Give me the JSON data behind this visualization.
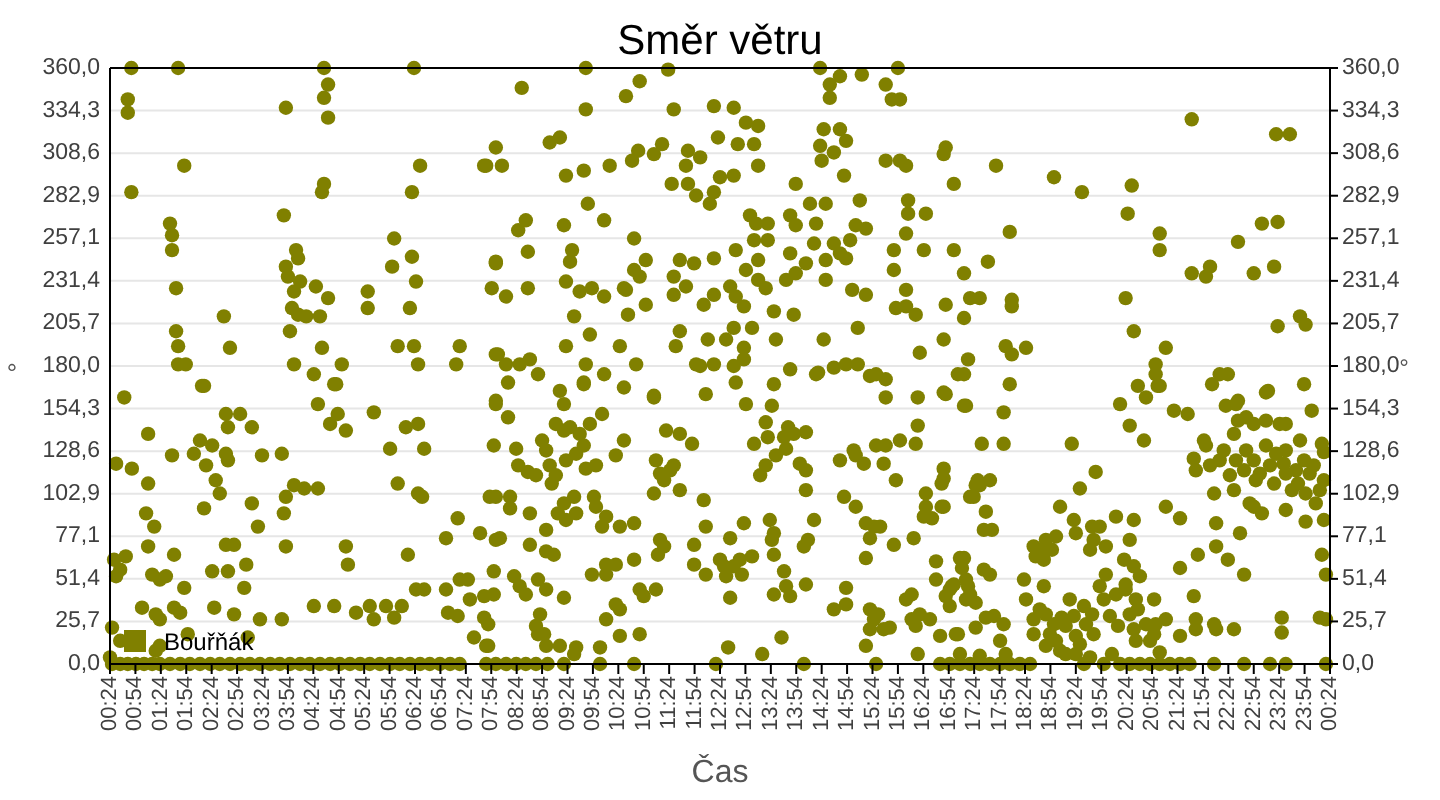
{
  "chart_data": {
    "type": "scatter",
    "title": "Směr větru",
    "xlabel": "Čas",
    "ylabel": "°",
    "y2label": "°",
    "xlim": [
      0.4,
      24.4
    ],
    "xticks": [
      {
        "value": 0.4,
        "label": "00:24"
      },
      {
        "value": 0.9,
        "label": "00:54"
      },
      {
        "value": 1.4,
        "label": "01:24"
      },
      {
        "value": 1.9,
        "label": "01:54"
      },
      {
        "value": 2.4,
        "label": "02:24"
      },
      {
        "value": 2.9,
        "label": "02:54"
      },
      {
        "value": 3.4,
        "label": "03:24"
      },
      {
        "value": 3.9,
        "label": "03:54"
      },
      {
        "value": 4.4,
        "label": "04:24"
      },
      {
        "value": 4.9,
        "label": "04:54"
      },
      {
        "value": 5.4,
        "label": "05:24"
      },
      {
        "value": 5.9,
        "label": "05:54"
      },
      {
        "value": 6.4,
        "label": "06:24"
      },
      {
        "value": 6.9,
        "label": "06:54"
      },
      {
        "value": 7.4,
        "label": "07:24"
      },
      {
        "value": 7.9,
        "label": "07:54"
      },
      {
        "value": 8.4,
        "label": "08:24"
      },
      {
        "value": 8.9,
        "label": "08:54"
      },
      {
        "value": 9.4,
        "label": "09:24"
      },
      {
        "value": 9.9,
        "label": "09:54"
      },
      {
        "value": 10.4,
        "label": "10:24"
      },
      {
        "value": 10.9,
        "label": "10:54"
      },
      {
        "value": 11.4,
        "label": "11:24"
      },
      {
        "value": 11.9,
        "label": "11:54"
      },
      {
        "value": 12.4,
        "label": "12:24"
      },
      {
        "value": 12.9,
        "label": "12:54"
      },
      {
        "value": 13.4,
        "label": "13:24"
      },
      {
        "value": 13.9,
        "label": "13:54"
      },
      {
        "value": 14.4,
        "label": "14:24"
      },
      {
        "value": 14.9,
        "label": "14:54"
      },
      {
        "value": 15.4,
        "label": "15:24"
      },
      {
        "value": 15.9,
        "label": "15:54"
      },
      {
        "value": 16.4,
        "label": "16:24"
      },
      {
        "value": 16.9,
        "label": "16:54"
      },
      {
        "value": 17.4,
        "label": "17:24"
      },
      {
        "value": 17.9,
        "label": "17:54"
      },
      {
        "value": 18.4,
        "label": "18:24"
      },
      {
        "value": 18.9,
        "label": "18:54"
      },
      {
        "value": 19.4,
        "label": "19:24"
      },
      {
        "value": 19.9,
        "label": "19:54"
      },
      {
        "value": 20.4,
        "label": "20:24"
      },
      {
        "value": 20.9,
        "label": "20:54"
      },
      {
        "value": 21.4,
        "label": "21:24"
      },
      {
        "value": 21.9,
        "label": "21:54"
      },
      {
        "value": 22.4,
        "label": "22:24"
      },
      {
        "value": 22.9,
        "label": "22:54"
      },
      {
        "value": 23.4,
        "label": "23:24"
      },
      {
        "value": 23.9,
        "label": "23:54"
      },
      {
        "value": 24.4,
        "label": "00:24"
      }
    ],
    "ylim": [
      0,
      360
    ],
    "yticks": [
      {
        "value": 0,
        "label": "0,0"
      },
      {
        "value": 25.714,
        "label": "25,7"
      },
      {
        "value": 51.429,
        "label": "51,4"
      },
      {
        "value": 77.143,
        "label": "77,1"
      },
      {
        "value": 102.857,
        "label": "102,9"
      },
      {
        "value": 128.571,
        "label": "128,6"
      },
      {
        "value": 154.286,
        "label": "154,3"
      },
      {
        "value": 180,
        "label": "180,0"
      },
      {
        "value": 205.714,
        "label": "205,7"
      },
      {
        "value": 231.429,
        "label": "231,4"
      },
      {
        "value": 257.143,
        "label": "257,1"
      },
      {
        "value": 282.857,
        "label": "282,9"
      },
      {
        "value": 308.571,
        "label": "308,6"
      },
      {
        "value": 334.286,
        "label": "334,3"
      },
      {
        "value": 360,
        "label": "360,0"
      }
    ],
    "y2lim": [
      0,
      360
    ],
    "y2ticks": [
      {
        "value": 0,
        "label": "0,0"
      },
      {
        "value": 25.714,
        "label": "25,7"
      },
      {
        "value": 51.429,
        "label": "51,4"
      },
      {
        "value": 77.143,
        "label": "77,1"
      },
      {
        "value": 102.857,
        "label": "102,9"
      },
      {
        "value": 128.571,
        "label": "128,6"
      },
      {
        "value": 154.286,
        "label": "154,3"
      },
      {
        "value": 180,
        "label": "180,0"
      },
      {
        "value": 205.714,
        "label": "205,7"
      },
      {
        "value": 231.429,
        "label": "231,4"
      },
      {
        "value": 257.143,
        "label": "257,1"
      },
      {
        "value": 282.857,
        "label": "282,9"
      },
      {
        "value": 308.571,
        "label": "308,6"
      },
      {
        "value": 334.286,
        "label": "334,3"
      },
      {
        "value": 360,
        "label": "360,0"
      }
    ],
    "grid": "y",
    "legend": "bottom left",
    "marker": "circle",
    "series": [
      {
        "name": "Bouřňák",
        "color": "#808000",
        "x": [
          0.82,
          0.75,
          0.75,
          0.82,
          1.74,
          1.86,
          1.58,
          1.62,
          1.62,
          1.7,
          1.7,
          1.74,
          1.74,
          1.89,
          2.21,
          0.68,
          2.64,
          2.76,
          3.86,
          3.82,
          4.06,
          4.1,
          3.86,
          3.9,
          4.14,
          4.02,
          4.45,
          4.69,
          3.98,
          4.1,
          4.26,
          4.53,
          3.94,
          4.57,
          4.02,
          4.41,
          4.96,
          4.81,
          4.61,
          4.69,
          4.61,
          4.69,
          4.61,
          4.57,
          5.47,
          5.47,
          5.99,
          5.95,
          6.34,
          6.42,
          6.3,
          6.06,
          6.38,
          6.46,
          6.34,
          6.5,
          6.38,
          7.21,
          7.28,
          7.76,
          7.99,
          7.91,
          7.99,
          7.99,
          0.52,
          0.83,
          0.48,
          0.6,
          0.71,
          0.52,
          1.03,
          1.15,
          1.15,
          1.11,
          1.15,
          1.27,
          1.23,
          1.38,
          1.3,
          1.38,
          1.5,
          1.66,
          1.86,
          1.66,
          1.78,
          1.62,
          1.93,
          2.25,
          2.05,
          2.17,
          2.29,
          2.41,
          2.48,
          2.68,
          2.72,
          2.56,
          2.25,
          2.41,
          2.72,
          2.68,
          2.84,
          2.45,
          2.84,
          2.68,
          2.72,
          2.96,
          3.19,
          3.04,
          3.08,
          3.19,
          3.31,
          3.39,
          3.35,
          3.11,
          3.78,
          3.78,
          3.82,
          3.86,
          4.02,
          4.22,
          4.49,
          3.86,
          4.49,
          4.85,
          4.73,
          4.88,
          5.04,
          5.59,
          5.04,
          5.08,
          4.41,
          4.81,
          5.24,
          5.51,
          5.59,
          5.83,
          5.99,
          6.14,
          5.91,
          6.06,
          6.22,
          6.46,
          6.58,
          6.46,
          6.54,
          6.26,
          6.42,
          6.58,
          7.01,
          7.24,
          7.28,
          7.01,
          7.05,
          7.24,
          7.44,
          7.48,
          7.56,
          7.68,
          7.76,
          7.84,
          7.95,
          7.95,
          7.99,
          7.99,
          7.99,
          0.44,
          0.6,
          0.4,
          1.3,
          1.38,
          9.76,
          11.38,
          8.5,
          9.76,
          10.55,
          10.82,
          11.49,
          12.28,
          12.67,
          12.91,
          13.15,
          14.37,
          14.56,
          14.56,
          14.76,
          15.19,
          15.66,
          15.9,
          15.78,
          15.94,
          8.11,
          7.8,
          9.05,
          9.25,
          9.37,
          9.72,
          10.23,
          10.67,
          10.79,
          11.1,
          11.26,
          11.77,
          12.01,
          11.73,
          12.36,
          12.75,
          13.07,
          12.4,
          12.67,
          13.15,
          11.45,
          11.77,
          11.93,
          12.28,
          12.2,
          9.8,
          10.12,
          10.71,
          8.58,
          8.43,
          9.33,
          9.49,
          9.45,
          7.99,
          8.62,
          8.19,
          8.62,
          9.37,
          9.64,
          9.88,
          10.12,
          10.51,
          10.82,
          10.94,
          10.71,
          11.61,
          11.49,
          11.73,
          11.89,
          11.49,
          12.08,
          12.28,
          12.28,
          12.71,
          12.99,
          13.11,
          13.34,
          13.07,
          13.34,
          13.15,
          12.91,
          13.15,
          13.3,
          12.6,
          12.71,
          12.87,
          13.78,
          13.89,
          13.89,
          14.17,
          14.48,
          14.29,
          13.78,
          13.89,
          13.7,
          14.09,
          14.25,
          14.48,
          14.48,
          14.64,
          14.76,
          14.96,
          15.07,
          15.27,
          15.15,
          14.88,
          15.0,
          15.27,
          14.44,
          14.37,
          14.4,
          14.64,
          14.76,
          14.88,
          14.84,
          15.66,
          15.94,
          16.06,
          16.84,
          16.8,
          17.0,
          16.1,
          16.1,
          16.45,
          16.06,
          16.41,
          15.82,
          15.82,
          16.06,
          16.06,
          15.86,
          16.25,
          16.84,
          17.0,
          17.2,
          17.32,
          17.2,
          16.33,
          16.8,
          17.08,
          16.8,
          13.46,
          13.85,
          12.67,
          13.03,
          12.16,
          12.52,
          12.87,
          12.87,
          13.5,
          13.78,
          14.33,
          14.64,
          14.44,
          15.11,
          14.88,
          15.11,
          15.35,
          15.47,
          15.66,
          9.53,
          9.84,
          9.37,
          10.43,
          10.75,
          9.76,
          10.12,
          9.72,
          9.25,
          8.03,
          8.19,
          8.46,
          8.66,
          8.82,
          8.23,
          11.61,
          11.53,
          11.93,
          12.28,
          12.67,
          12.71,
          13.46,
          11.1,
          10.59,
          10.55,
          10.94,
          12.12,
          17.51,
          7.99,
          8.23,
          8.39,
          9.33,
          9.72,
          10.51,
          11.1,
          12.01,
          12.91,
          14.29,
          15.66,
          16.29,
          16.84,
          17.2,
          17.2,
          8.9,
          8.98,
          9.17,
          9.33,
          9.45,
          9.64,
          9.72,
          9.84,
          10.08,
          9.05,
          9.17,
          9.37,
          9.57,
          9.76,
          9.96,
          10.35,
          10.51,
          8.43,
          8.62,
          8.78,
          9.09,
          9.33,
          9.53,
          9.21,
          9.37,
          9.57,
          9.92,
          9.96,
          10.16,
          10.43,
          10.71,
          10.08,
          8.98,
          7.87,
          8.27,
          8.27,
          8.66,
          9.13,
          8.98,
          8.66,
          8.07,
          7.95,
          8.35,
          8.46,
          8.58,
          8.82,
          8.98,
          9.33,
          8.86,
          8.78,
          8.94,
          9.25,
          9.57,
          9.88,
          10.16,
          10.16,
          10.35,
          10.71,
          10.04,
          10.16,
          10.35,
          10.43,
          10.43,
          10.82,
          10.82,
          10.9,
          11.14,
          11.22,
          11.3,
          11.18,
          11.1,
          11.22,
          11.3,
          11.14,
          11.42,
          11.49,
          11.61,
          11.34,
          11.61,
          11.85,
          12.08,
          12.12,
          11.89,
          11.89,
          12.12,
          12.4,
          12.48,
          12.52,
          12.6,
          12.67,
          12.83,
          12.6,
          12.79,
          13.03,
          12.87,
          13.07,
          13.34,
          13.3,
          13.42,
          13.66,
          13.74,
          13.19,
          13.3,
          13.5,
          13.7,
          13.85,
          14.09,
          13.97,
          14.09,
          14.09,
          14.05,
          14.13,
          14.25,
          13.38,
          13.46,
          13.42,
          13.46,
          13.66,
          13.7,
          13.46,
          13.78,
          14.09,
          13.61,
          13.23,
          12.56,
          14.64,
          14.88,
          14.88,
          14.84,
          15.07,
          14.76,
          15.03,
          15.07,
          15.23,
          15.47,
          15.62,
          15.66,
          15.86,
          15.94,
          16.29,
          16.25,
          15.27,
          15.43,
          15.55,
          15.35,
          15.82,
          15.27,
          16.21,
          16.45,
          16.45,
          16.57,
          16.76,
          16.76,
          16.41,
          16.06,
          16.17,
          16.33,
          16.53,
          16.65,
          16.65,
          16.84,
          16.92,
          17.0,
          17.12,
          17.16,
          17.24,
          17.24,
          17.39,
          17.43,
          17.43,
          15.35,
          15.43,
          15.51,
          15.62,
          15.74,
          15.35,
          15.27,
          16.25,
          16.17,
          16.73,
          17.04,
          17.12,
          16.29,
          7.8,
          7.84,
          7.76,
          8.82,
          8.98,
          9.53,
          17.28,
          17.24,
          18.1,
          17.98,
          17.98,
          17.55,
          16.8,
          16.8,
          16.8,
          17.47,
          17.51,
          17.71,
          17.32,
          17.63,
          17.59,
          17.75,
          17.2,
          17.28,
          17.32,
          17.59,
          17.71,
          16.96,
          16.92,
          17.08,
          17.43,
          17.63,
          17.79,
          17.98,
          17.91,
          18.02,
          17.51,
          19.32,
          19.48,
          19.79,
          20.27,
          20.46,
          20.74,
          20.62,
          20.78,
          20.97,
          21.01,
          21.33,
          21.6,
          21.17,
          21.45,
          21.17,
          21.05,
          20.94,
          21.72,
          21.76,
          21.76,
          21.45,
          21.45,
          21.8,
          21.96,
          22.08,
          22.23,
          22.39,
          22.35,
          22.55,
          22.59,
          22.75,
          22.51,
          22.9,
          23.14,
          23.14,
          23.41,
          23.53,
          23.89,
          24.04,
          24.24,
          24.28,
          23.53,
          23.81,
          24.2,
          24.28,
          24.24,
          24.32,
          24.2,
          24.32,
          23.45,
          23.45,
          22.71,
          22.63,
          22.16,
          22.16,
          22.39,
          22.51,
          22.12,
          22.16,
          21.72,
          21.76,
          21.92,
          22.04,
          22.12,
          22.23,
          22.31,
          22.43,
          22.51,
          22.55,
          22.75,
          22.71,
          22.9,
          22.94,
          23.02,
          23.14,
          23.22,
          23.3,
          23.34,
          23.49,
          23.53,
          23.53,
          23.65,
          23.73,
          23.77,
          23.89,
          23.92,
          24.0,
          24.08,
          24.12,
          24.28,
          23.92,
          22.9,
          22.82,
          23.06,
          18.38,
          18.42,
          18.57,
          18.61,
          18.69,
          18.57,
          18.77,
          18.77,
          18.69,
          18.81,
          18.97,
          18.89,
          19.01,
          19.09,
          19.12,
          19.2,
          19.28,
          19.36,
          19.4,
          19.56,
          19.6,
          19.72,
          19.75,
          19.87,
          19.99,
          19.95,
          20.07,
          20.19,
          20.23,
          20.35,
          20.38,
          20.46,
          20.54,
          20.58,
          20.58,
          20.66,
          20.78,
          20.86,
          19.36,
          19.4,
          19.72,
          19.75,
          19.87,
          19.99,
          19.09,
          19.01,
          18.93,
          18.81,
          19.68,
          20.19,
          20.54,
          20.46,
          20.54,
          20.38,
          20.94,
          20.97,
          20.62,
          18.81,
          19.2,
          19.4,
          19.48,
          18.57,
          19.68,
          20.11,
          17.67,
          18.1,
          17.83,
          18.02,
          18.14,
          18.42,
          18.14,
          18.14,
          18.97,
          19.52,
          20.42,
          20.5,
          20.38,
          20.54,
          21.05,
          21.05,
          21.17,
          20.97,
          21.05,
          21.68,
          21.68,
          22.04,
          21.96,
          22.59,
          22.9,
          23.06,
          23.37,
          23.3,
          23.34,
          23.61,
          23.37,
          23.81,
          23.92,
          23.18,
          22.59,
          0.44,
          0.6,
          0.75,
          0.91,
          1.07,
          1.23,
          1.38,
          1.58,
          1.78,
          1.97,
          2.17,
          2.37,
          2.56,
          2.76,
          2.96,
          3.15,
          3.35,
          3.55,
          3.74,
          3.94,
          4.14,
          4.33,
          4.53,
          4.73,
          4.92,
          5.12,
          5.32,
          5.51,
          5.71,
          5.91,
          6.1,
          6.3,
          6.5,
          6.69,
          6.89,
          7.09,
          7.28,
          7.8,
          7.99,
          8.19,
          8.39,
          8.58,
          8.78,
          9.01,
          9.33,
          10.04,
          10.71,
          12.32,
          14.05,
          15.47,
          16.73,
          16.92,
          17.12,
          17.32,
          17.51,
          17.71,
          17.91,
          18.1,
          18.3,
          18.5,
          19.56,
          19.95,
          20.27,
          20.46,
          20.66,
          20.86,
          21.05,
          21.25,
          21.45,
          21.64,
          22.12,
          22.71,
          23.22,
          23.53,
          24.32
        ],
        "values": [
          360,
          341,
          333,
          285,
          360,
          301,
          266,
          259,
          250,
          227,
          201,
          192,
          181,
          181,
          168,
          161,
          210,
          191,
          336,
          271,
          250,
          245,
          240,
          234,
          231,
          225,
          228,
          221,
          215,
          211,
          210,
          210,
          201,
          191,
          181,
          175,
          181,
          169,
          360,
          350,
          342,
          330,
          290,
          285,
          225,
          215,
          257,
          240,
          246,
          231,
          215,
          192,
          192,
          181,
          285,
          301,
          360,
          181,
          192,
          301,
          312,
          227,
          242,
          187,
          121,
          118,
          63,
          57,
          65,
          53,
          34,
          139,
          109,
          91,
          71,
          83,
          54,
          51,
          30,
          27,
          53,
          66,
          46,
          34,
          31,
          126,
          18,
          168,
          127,
          135,
          120,
          132,
          111,
          127,
          123,
          103,
          94,
          56,
          56,
          72,
          72,
          34,
          30,
          151,
          143,
          151,
          143,
          46,
          60,
          97,
          83,
          126,
          27,
          16,
          27,
          127,
          91,
          101,
          108,
          106,
          106,
          71,
          157,
          169,
          145,
          151,
          141,
          152,
          71,
          60,
          35,
          35,
          31,
          35,
          27,
          35,
          28,
          35,
          130,
          109,
          143,
          145,
          130,
          103,
          101,
          66,
          45,
          45,
          76,
          88,
          51,
          45,
          31,
          29,
          51,
          39,
          16,
          79,
          28,
          11,
          42,
          132,
          159,
          75,
          101,
          22,
          14,
          4,
          8,
          11,
          360,
          359,
          348,
          335,
          343,
          352,
          335,
          337,
          336,
          327,
          325,
          360,
          350,
          342,
          355,
          356,
          350,
          360,
          341,
          341,
          301,
          301,
          315,
          318,
          295,
          298,
          301,
          304,
          310,
          308,
          314,
          310,
          306,
          301,
          318,
          314,
          314,
          294,
          295,
          301,
          290,
          290,
          283,
          285,
          278,
          278,
          268,
          257,
          268,
          262,
          265,
          250,
          243,
          243,
          249,
          222,
          227,
          231,
          225,
          227,
          222,
          227,
          234,
          244,
          238,
          244,
          234,
          228,
          242,
          223,
          217,
          223,
          245,
          250,
          271,
          266,
          266,
          256,
          256,
          244,
          238,
          232,
          227,
          228,
          222,
          216,
          271,
          265,
          290,
          278,
          278,
          266,
          248,
          236,
          232,
          242,
          254,
          244,
          232,
          254,
          248,
          256,
          265,
          263,
          280,
          245,
          226,
          223,
          323,
          313,
          304,
          309,
          323,
          316,
          295,
          304,
          304,
          301,
          312,
          308,
          290,
          280,
          272,
          272,
          260,
          250,
          250,
          238,
          226,
          216,
          215,
          211,
          217,
          250,
          236,
          221,
          209,
          188,
          196,
          175,
          164,
          213,
          211,
          203,
          203,
          196,
          196,
          191,
          184,
          196,
          178,
          176,
          179,
          196,
          203,
          181,
          181,
          174,
          175,
          172,
          210,
          199,
          192,
          192,
          181,
          181,
          175,
          170,
          165,
          187,
          181,
          181,
          184,
          175,
          170,
          201,
          192,
          181,
          181,
          180,
          170,
          169,
          162,
          211,
          226,
          217,
          163,
          221,
          157,
          149,
          130,
          157,
          169,
          167,
          161,
          180,
          157,
          175,
          161,
          161,
          163,
          175,
          156,
          135,
          129,
          145,
          141,
          143,
          139,
          132,
          145,
          151,
          120,
          114,
          123,
          127,
          118,
          120,
          126,
          135,
          120,
          116,
          114,
          109,
          97,
          101,
          91,
          87,
          91,
          101,
          95,
          89,
          83,
          85,
          83,
          81,
          101,
          94,
          101,
          91,
          66,
          68,
          72,
          76,
          56,
          53,
          47,
          42,
          51,
          45,
          40,
          30,
          23,
          18,
          11,
          10,
          54,
          54,
          60,
          60,
          63,
          10,
          27,
          36,
          33,
          17,
          45,
          18,
          41,
          45,
          75,
          71,
          66,
          103,
          115,
          111,
          123,
          117,
          120,
          105,
          141,
          139,
          133,
          99,
          83,
          72,
          60,
          54,
          63,
          59,
          53,
          76,
          59,
          54,
          40,
          63,
          65,
          85,
          133,
          137,
          146,
          156,
          137,
          143,
          114,
          120,
          126,
          130,
          139,
          140,
          121,
          117,
          105,
          71,
          75,
          87,
          87,
          79,
          75,
          66,
          56,
          47,
          42,
          41,
          48,
          16,
          6,
          10,
          33,
          36,
          46,
          101,
          95,
          123,
          129,
          126,
          121,
          132,
          121,
          132,
          111,
          135,
          144,
          133,
          85,
          83,
          83,
          76,
          72,
          64,
          76,
          103,
          95,
          88,
          95,
          109,
          89,
          39,
          42,
          30,
          27,
          62,
          51,
          41,
          45,
          48,
          64,
          58,
          51,
          39,
          101,
          108,
          37,
          33,
          27,
          30,
          21,
          22,
          21,
          11,
          23,
          27,
          17,
          18,
          6,
          6,
          11,
          24,
          41,
          18,
          11,
          6,
          184,
          156,
          169,
          152,
          133,
          133,
          118,
          112,
          95,
          111,
          108,
          111,
          101,
          92,
          81,
          81,
          64,
          47,
          42,
          57,
          54,
          47,
          35,
          18,
          22,
          28,
          29,
          24,
          14,
          6,
          5,
          133,
          106,
          116,
          157,
          144,
          135,
          168,
          161,
          181,
          168,
          153,
          151,
          95,
          88,
          27,
          7,
          39,
          41,
          27,
          21,
          17,
          58,
          66,
          132,
          169,
          175,
          175,
          156,
          157,
          147,
          149,
          139,
          145,
          147,
          164,
          145,
          145,
          169,
          153,
          133,
          128,
          129,
          135,
          105,
          87,
          66,
          54,
          28,
          27,
          28,
          19,
          54,
          79,
          85,
          71,
          63,
          21,
          24,
          21,
          124,
          117,
          135,
          120,
          103,
          123,
          129,
          114,
          105,
          123,
          129,
          117,
          123,
          111,
          115,
          132,
          120,
          109,
          127,
          121,
          115,
          93,
          105,
          117,
          109,
          123,
          103,
          115,
          120,
          97,
          111,
          86,
          95,
          97,
          91,
          51,
          39,
          27,
          65,
          69,
          71,
          63,
          47,
          33,
          30,
          24,
          18,
          14,
          8,
          28,
          23,
          39,
          29,
          17,
          35,
          24,
          30,
          18,
          47,
          54,
          39,
          29,
          42,
          23,
          63,
          48,
          30,
          21,
          39,
          14,
          53,
          24,
          14,
          87,
          79,
          83,
          75,
          83,
          71,
          95,
          77,
          69,
          75,
          69,
          89,
          87,
          75,
          59,
          45,
          18,
          24,
          33,
          11,
          6,
          6,
          12,
          18,
          4,
          6,
          243,
          261,
          301,
          192,
          187,
          191,
          220,
          216,
          294,
          285,
          272,
          289,
          221,
          201,
          260,
          250,
          191,
          175,
          168,
          329,
          236,
          240,
          234,
          255,
          236,
          266,
          267,
          240,
          320,
          320,
          204,
          210,
          205,
          165,
          159,
          0,
          0,
          0,
          0,
          0,
          0,
          0,
          0,
          0,
          0,
          0,
          0,
          0,
          0,
          0,
          0,
          0,
          0,
          0,
          0,
          0,
          0,
          0,
          0,
          0,
          0,
          0,
          0,
          0,
          0,
          0,
          0,
          0,
          0,
          0,
          0,
          0,
          0,
          0,
          0,
          0,
          0,
          0,
          0,
          0,
          0,
          0,
          0,
          0,
          0,
          0,
          0,
          0,
          0,
          0,
          0,
          0,
          0,
          0,
          0,
          0,
          0,
          0,
          0,
          0,
          0,
          0,
          0,
          0,
          0,
          0,
          0,
          0,
          0,
          0
        ]
      }
    ]
  }
}
